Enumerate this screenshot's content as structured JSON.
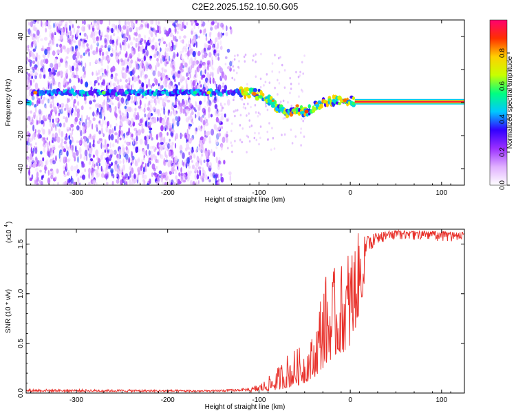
{
  "title": "C2E2.2025.152.10.50.G05",
  "chart_data": [
    {
      "type": "heatmap",
      "xlabel": "Height of straight line (km)",
      "ylabel": "Frequency (Hz)",
      "xlim": [
        -355,
        125
      ],
      "ylim": [
        -50,
        50
      ],
      "xticks": [
        -300,
        -200,
        -100,
        0,
        100
      ],
      "yticks": [
        -40,
        -20,
        0,
        20,
        40
      ],
      "colorbar": {
        "label": "Normalized spectral amplitude",
        "range": [
          0,
          1
        ],
        "ticks": [
          0.0,
          0.2,
          0.4,
          0.6,
          0.8
        ],
        "colormap": [
          "#ffffff",
          "#e0b0ff",
          "#9b30ff",
          "#3300ff",
          "#00c8ff",
          "#00ff80",
          "#c8ff00",
          "#ffd000",
          "#ff3000",
          "#ff0070"
        ]
      },
      "signal_track": [
        {
          "x": -350,
          "f": 6
        },
        {
          "x": -300,
          "f": 6
        },
        {
          "x": -250,
          "f": 6
        },
        {
          "x": -200,
          "f": 6
        },
        {
          "x": -150,
          "f": 6
        },
        {
          "x": -120,
          "f": 6
        },
        {
          "x": -100,
          "f": 5
        },
        {
          "x": -90,
          "f": 2
        },
        {
          "x": -80,
          "f": -3
        },
        {
          "x": -70,
          "f": -7
        },
        {
          "x": -60,
          "f": -4
        },
        {
          "x": -50,
          "f": -6
        },
        {
          "x": -40,
          "f": -3
        },
        {
          "x": -30,
          "f": 0
        },
        {
          "x": -20,
          "f": 1
        },
        {
          "x": -10,
          "f": 1.5
        },
        {
          "x": 0,
          "f": 1
        },
        {
          "x": 5,
          "f": 0.5
        },
        {
          "x": 125,
          "f": 0.5
        }
      ]
    },
    {
      "type": "line",
      "xlabel": "Height of straight line (km)",
      "ylabel": "SNR (10 * v/v)",
      "scale_label": "(x10",
      "scale_exponent": "4",
      "xlim": [
        -355,
        125
      ],
      "ylim": [
        0,
        1.65
      ],
      "xticks": [
        -300,
        -200,
        -100,
        0,
        100
      ],
      "yticks": [
        0.0,
        0.5,
        1.0,
        1.5
      ],
      "color": "#e8302a",
      "envelope": [
        {
          "x": -355,
          "lo": 0.0,
          "hi": 0.04
        },
        {
          "x": -150,
          "lo": 0.0,
          "hi": 0.03
        },
        {
          "x": -110,
          "lo": 0.01,
          "hi": 0.05
        },
        {
          "x": -95,
          "lo": 0.02,
          "hi": 0.12
        },
        {
          "x": -80,
          "lo": 0.03,
          "hi": 0.25
        },
        {
          "x": -70,
          "lo": 0.05,
          "hi": 0.4
        },
        {
          "x": -60,
          "lo": 0.07,
          "hi": 0.45
        },
        {
          "x": -50,
          "lo": 0.1,
          "hi": 0.48
        },
        {
          "x": -40,
          "lo": 0.15,
          "hi": 0.6
        },
        {
          "x": -30,
          "lo": 0.25,
          "hi": 1.2
        },
        {
          "x": -20,
          "lo": 0.35,
          "hi": 1.25
        },
        {
          "x": -10,
          "lo": 0.4,
          "hi": 1.3
        },
        {
          "x": 0,
          "lo": 0.45,
          "hi": 1.55
        },
        {
          "x": 10,
          "lo": 0.8,
          "hi": 1.62
        },
        {
          "x": 20,
          "lo": 1.35,
          "hi": 1.58
        },
        {
          "x": 30,
          "lo": 1.5,
          "hi": 1.62
        },
        {
          "x": 50,
          "lo": 1.55,
          "hi": 1.64
        },
        {
          "x": 125,
          "lo": 1.52,
          "hi": 1.62
        }
      ]
    }
  ]
}
